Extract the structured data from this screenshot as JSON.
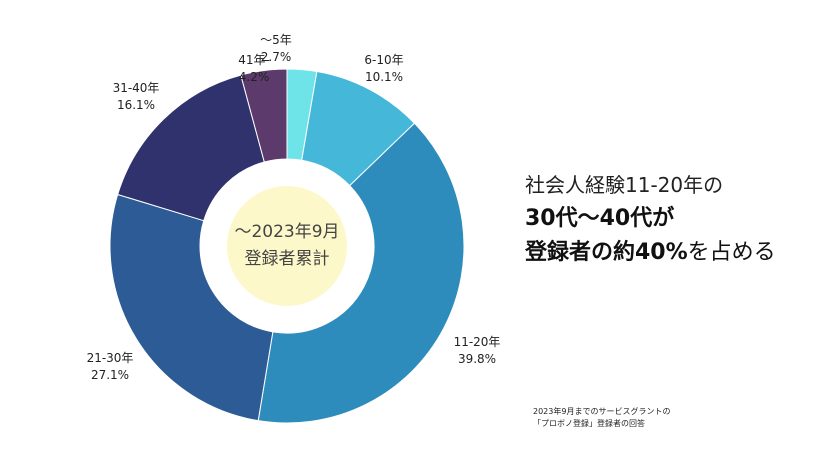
{
  "chart_data": {
    "type": "pie",
    "slices": [
      {
        "label": "～5年",
        "value": 2.7,
        "value_text": "2.7%",
        "color": "#6ee3e8"
      },
      {
        "label": "6‐10年",
        "value": 10.1,
        "value_text": "10.1%",
        "color": "#45b7d9"
      },
      {
        "label": "11‐20年",
        "value": 39.8,
        "value_text": "39.8%",
        "color": "#2e8cbd"
      },
      {
        "label": "21‐30年",
        "value": 27.1,
        "value_text": "27.1%",
        "color": "#2d5b96"
      },
      {
        "label": "31‐40年",
        "value": 16.1,
        "value_text": "16.1%",
        "color": "#2f326c"
      },
      {
        "label": "41年‐",
        "value": 4.2,
        "value_text": "4.2%",
        "color": "#5c3a6b"
      }
    ],
    "center_label": [
      "～2023年9月",
      "登録者累計"
    ],
    "center_color": "#fdf8c9"
  },
  "headline": {
    "line1": "社会人経験11-20年の",
    "line2": "30代～40代が",
    "line3_bold": "登録者の約40%",
    "line3_rest": "を占める"
  },
  "note": {
    "line1": "2023年9月までのサービスグラントの",
    "line2": "「プロボノ登録」登録者の回答"
  }
}
